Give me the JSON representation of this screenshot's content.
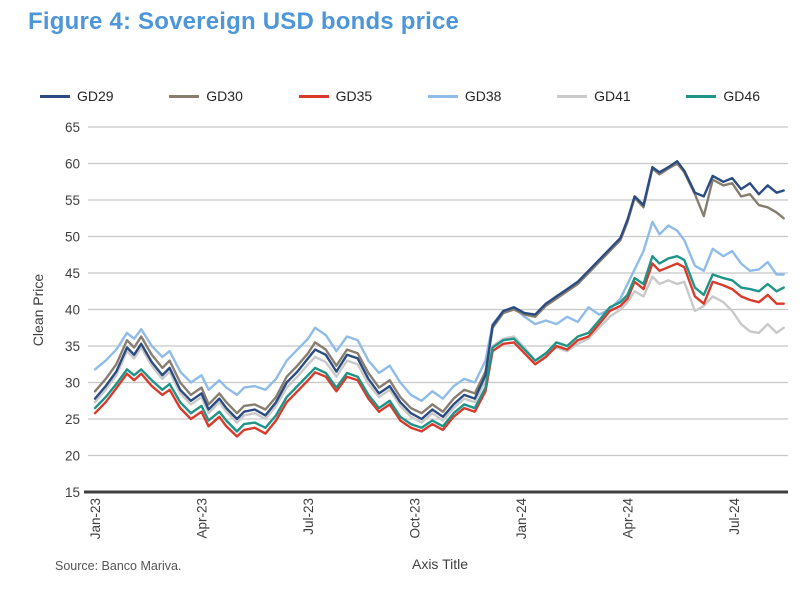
{
  "figure": {
    "title": "Figure 4: Sovereign USD bonds price",
    "source": "Source: Banco Mariva."
  },
  "colors": {
    "title_blue": "#4D96D9",
    "axis_line": "#3F3F3F",
    "gridline": "#C8C8C8",
    "tick_text": "#3F3F3F"
  },
  "chart_data": {
    "type": "line",
    "title": "Figure 4: Sovereign USD bonds price",
    "xlabel": "Axis Title",
    "ylabel": "Clean Price",
    "ylim": [
      15,
      65
    ],
    "yticks": [
      15,
      20,
      25,
      30,
      35,
      40,
      45,
      50,
      55,
      60,
      65
    ],
    "grid": true,
    "legend_position": "top",
    "xticks": [
      {
        "label": "Jan-23",
        "month": 0
      },
      {
        "label": "Apr-23",
        "month": 3
      },
      {
        "label": "Jul-23",
        "month": 6
      },
      {
        "label": "Oct-23",
        "month": 9
      },
      {
        "label": "Jan-24",
        "month": 12
      },
      {
        "label": "Apr-24",
        "month": 15
      },
      {
        "label": "Jul-24",
        "month": 18
      }
    ],
    "x_months_since_jan23": [
      0,
      0.3,
      0.6,
      0.9,
      1.1,
      1.3,
      1.6,
      1.9,
      2.1,
      2.4,
      2.7,
      3.0,
      3.2,
      3.5,
      3.7,
      4.0,
      4.2,
      4.5,
      4.8,
      5.1,
      5.4,
      5.7,
      6.0,
      6.2,
      6.5,
      6.8,
      7.1,
      7.4,
      7.7,
      8.0,
      8.3,
      8.6,
      8.9,
      9.2,
      9.5,
      9.8,
      10.1,
      10.4,
      10.7,
      11.0,
      11.2,
      11.5,
      11.8,
      12.1,
      12.4,
      12.7,
      13.0,
      13.3,
      13.6,
      13.9,
      14.2,
      14.5,
      14.8,
      15.0,
      15.2,
      15.45,
      15.7,
      15.9,
      16.15,
      16.4,
      16.6,
      16.9,
      17.15,
      17.4,
      17.7,
      17.95,
      18.2,
      18.45,
      18.7,
      18.95,
      19.2,
      19.4
    ],
    "series": [
      {
        "name": "GD29",
        "color": "#2B4C83",
        "values": [
          27.8,
          29.5,
          31.5,
          34.8,
          33.8,
          35.3,
          32.8,
          31.0,
          32.0,
          29.0,
          27.5,
          28.5,
          26.3,
          27.8,
          26.5,
          25.0,
          26.0,
          26.3,
          25.5,
          27.3,
          30.0,
          31.5,
          33.3,
          34.5,
          33.8,
          31.5,
          33.8,
          33.3,
          30.5,
          28.5,
          29.5,
          27.3,
          25.8,
          25.0,
          26.3,
          25.3,
          27.0,
          28.3,
          27.8,
          31.0,
          37.8,
          39.8,
          40.3,
          39.5,
          39.3,
          40.8,
          41.8,
          42.8,
          43.8,
          45.3,
          46.8,
          48.3,
          49.8,
          52.3,
          55.5,
          54.3,
          59.5,
          58.8,
          59.5,
          60.3,
          59.0,
          56.0,
          55.5,
          58.3,
          57.5,
          58.0,
          56.5,
          57.3,
          55.8,
          57.0,
          56.0,
          56.3
        ]
      },
      {
        "name": "GD30",
        "color": "#877E6F",
        "values": [
          28.8,
          30.5,
          32.5,
          35.8,
          34.8,
          36.3,
          33.8,
          32.0,
          33.0,
          30.0,
          28.3,
          29.3,
          27.0,
          28.5,
          27.3,
          25.8,
          26.8,
          27.0,
          26.3,
          28.0,
          30.8,
          32.3,
          34.0,
          35.5,
          34.5,
          32.3,
          34.5,
          34.0,
          31.3,
          29.3,
          30.3,
          28.0,
          26.5,
          25.8,
          27.0,
          26.0,
          27.8,
          29.0,
          28.5,
          31.5,
          37.5,
          39.5,
          40.0,
          39.3,
          39.0,
          40.5,
          41.5,
          42.5,
          43.5,
          45.0,
          46.5,
          48.0,
          49.5,
          52.0,
          55.3,
          54.0,
          59.3,
          58.5,
          59.3,
          60.0,
          58.8,
          55.8,
          52.8,
          57.8,
          57.0,
          57.3,
          55.5,
          55.8,
          54.3,
          54.0,
          53.3,
          52.5
        ]
      },
      {
        "name": "GD35",
        "color": "#D93A2B",
        "values": [
          25.8,
          27.3,
          29.2,
          31.2,
          30.3,
          31.2,
          29.5,
          28.3,
          29.0,
          26.5,
          25.0,
          26.0,
          24.0,
          25.3,
          24.0,
          22.6,
          23.5,
          23.8,
          23.0,
          24.8,
          27.3,
          28.8,
          30.3,
          31.4,
          30.8,
          28.8,
          30.8,
          30.3,
          27.8,
          26.0,
          27.0,
          24.8,
          23.8,
          23.3,
          24.3,
          23.5,
          25.3,
          26.5,
          26.0,
          28.8,
          34.3,
          35.3,
          35.5,
          34.0,
          32.5,
          33.5,
          35.0,
          34.5,
          35.8,
          36.3,
          38.0,
          39.8,
          40.5,
          41.5,
          43.8,
          42.8,
          46.3,
          45.3,
          45.8,
          46.3,
          45.8,
          41.8,
          40.8,
          43.8,
          43.3,
          42.8,
          41.8,
          41.3,
          41.0,
          42.0,
          40.8,
          40.8
        ]
      },
      {
        "name": "GD38",
        "color": "#8FBCE8",
        "values": [
          31.8,
          33.0,
          34.5,
          36.8,
          36.0,
          37.3,
          35.0,
          33.5,
          34.3,
          31.5,
          30.0,
          31.0,
          29.0,
          30.3,
          29.3,
          28.3,
          29.3,
          29.5,
          29.0,
          30.5,
          33.0,
          34.5,
          36.0,
          37.5,
          36.5,
          34.3,
          36.3,
          35.8,
          33.0,
          31.3,
          32.3,
          30.0,
          28.3,
          27.5,
          28.8,
          27.8,
          29.5,
          30.5,
          30.0,
          33.0,
          38.0,
          39.8,
          40.3,
          39.0,
          38.0,
          38.5,
          38.0,
          39.0,
          38.3,
          40.3,
          39.3,
          40.0,
          41.5,
          43.5,
          45.5,
          48.0,
          52.0,
          50.3,
          51.5,
          50.8,
          49.5,
          46.0,
          45.3,
          48.3,
          47.3,
          48.0,
          46.3,
          45.3,
          45.5,
          46.5,
          44.8,
          44.8
        ]
      },
      {
        "name": "GD41",
        "color": "#C9C9C9",
        "values": [
          27.3,
          29.0,
          31.0,
          34.3,
          33.3,
          34.8,
          32.3,
          30.5,
          31.5,
          28.5,
          27.0,
          28.0,
          25.8,
          27.3,
          26.0,
          24.5,
          25.5,
          25.8,
          25.0,
          26.8,
          29.3,
          30.8,
          32.5,
          33.5,
          32.8,
          30.8,
          33.0,
          32.5,
          29.8,
          28.0,
          29.0,
          26.8,
          25.3,
          24.5,
          25.8,
          24.8,
          26.5,
          27.8,
          27.3,
          30.3,
          35.0,
          36.0,
          36.3,
          34.8,
          33.0,
          33.8,
          34.8,
          34.3,
          35.3,
          36.0,
          37.5,
          39.0,
          40.0,
          41.0,
          42.5,
          41.8,
          44.5,
          43.5,
          44.0,
          43.5,
          43.8,
          39.8,
          40.5,
          41.8,
          41.0,
          39.8,
          38.0,
          37.0,
          36.8,
          38.0,
          36.8,
          37.5
        ]
      },
      {
        "name": "GD46",
        "color": "#1F9489",
        "values": [
          26.5,
          28.0,
          29.8,
          31.8,
          31.0,
          31.8,
          30.3,
          29.0,
          29.8,
          27.3,
          25.8,
          26.8,
          24.8,
          26.0,
          24.8,
          23.3,
          24.3,
          24.5,
          23.8,
          25.5,
          28.0,
          29.5,
          31.0,
          32.0,
          31.3,
          29.3,
          31.3,
          30.8,
          28.3,
          26.5,
          27.5,
          25.3,
          24.3,
          23.8,
          24.8,
          24.0,
          25.8,
          27.0,
          26.5,
          29.3,
          34.8,
          35.8,
          36.0,
          34.5,
          33.0,
          34.0,
          35.5,
          35.0,
          36.3,
          36.8,
          38.5,
          40.3,
          41.0,
          42.0,
          44.3,
          43.5,
          47.3,
          46.3,
          47.0,
          47.3,
          46.8,
          43.0,
          42.0,
          44.8,
          44.3,
          44.0,
          43.0,
          42.8,
          42.5,
          43.5,
          42.5,
          43.0
        ]
      }
    ]
  }
}
